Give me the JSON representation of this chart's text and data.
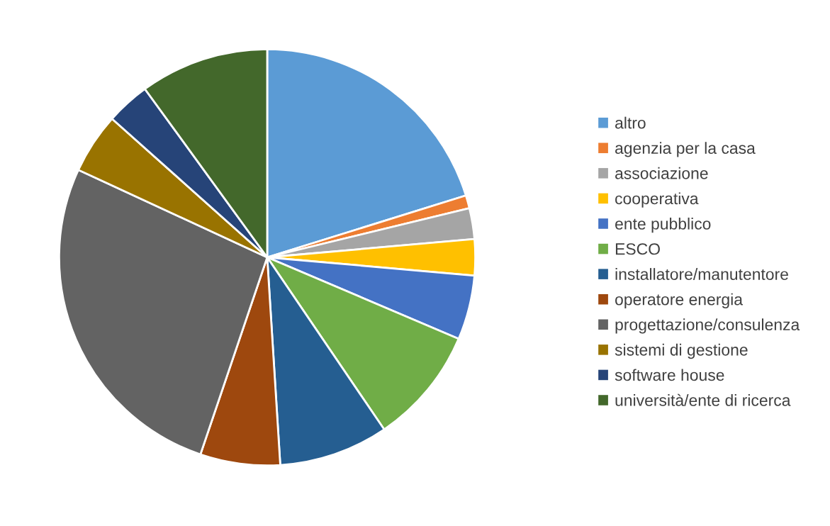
{
  "chart_data": {
    "type": "pie",
    "categories": [
      "altro",
      "agenzia per la casa",
      "associazione",
      "cooperativa",
      "ente pubblico",
      "ESCO",
      "installatore/manutentore",
      "operatore energia",
      "progettazione/consulenza",
      "sistemi di gestione",
      "software house",
      "università/ente di ricerca"
    ],
    "values": [
      20.2,
      1.0,
      2.4,
      2.8,
      5.0,
      9.1,
      8.5,
      6.2,
      26.7,
      4.7,
      3.4,
      10.0
    ],
    "colors": [
      "#5b9bd5",
      "#ed7d31",
      "#a5a5a5",
      "#ffc000",
      "#4472c4",
      "#70ad47",
      "#255e91",
      "#9e480e",
      "#636363",
      "#997300",
      "#264478",
      "#43682b"
    ],
    "legend": "right"
  }
}
